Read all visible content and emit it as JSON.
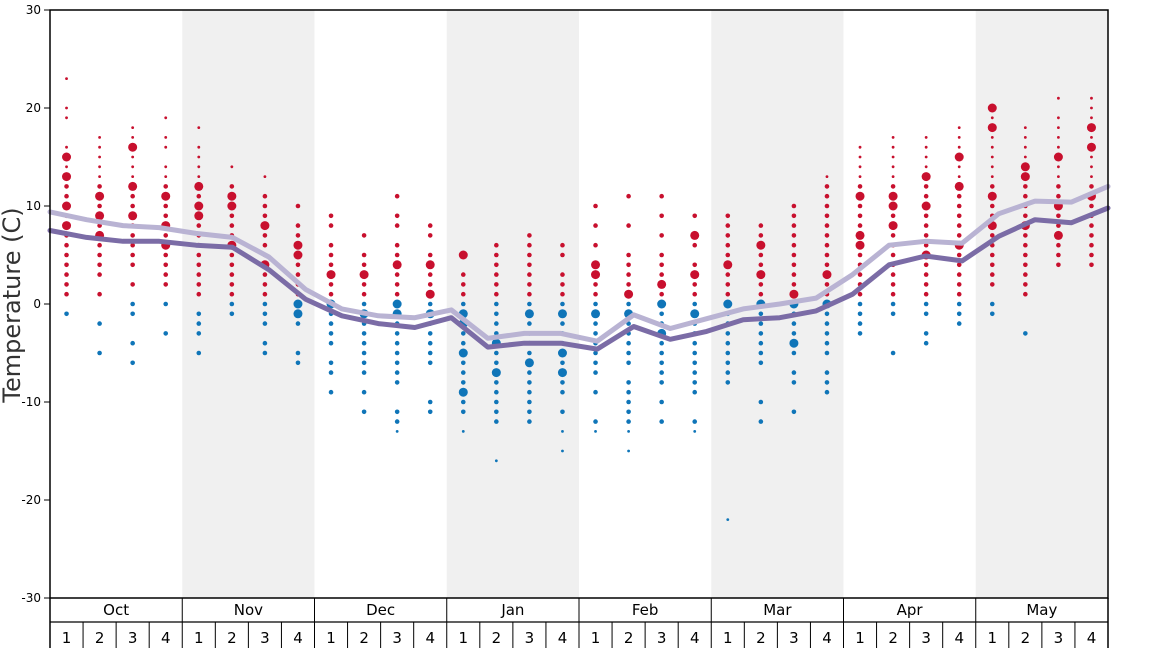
{
  "chart_data": {
    "type": "scatter",
    "ylabel": "Temperature (C)",
    "ylim": [
      -30,
      30
    ],
    "yticks": [
      "30",
      "20",
      "10",
      "0",
      "-10",
      "-20",
      "-30"
    ],
    "months": [
      "Oct",
      "Nov",
      "Dec",
      "Jan",
      "Feb",
      "Mar",
      "Apr",
      "May"
    ],
    "weeks": [
      "1",
      "2",
      "3",
      "4"
    ],
    "colors": {
      "warm": "#c8102e",
      "cold": "#0f75b8",
      "upper_line": "#b9b3d3",
      "lower_line": "#7b6ca6",
      "shade": "#f0f0f0"
    },
    "upper_line": [
      9.4,
      8.6,
      8.0,
      7.8,
      7.2,
      6.8,
      4.8,
      1.5,
      -0.5,
      -1.2,
      -1.4,
      -0.6,
      -3.5,
      -3.0,
      -3.0,
      -3.8,
      -1.1,
      -2.5,
      -1.5,
      -0.5,
      0.0,
      0.6,
      3.0,
      6.0,
      6.4,
      6.2,
      9.2,
      10.5,
      10.4,
      12.0
    ],
    "lower_line": [
      7.5,
      6.8,
      6.4,
      6.4,
      6.0,
      5.8,
      3.5,
      0.5,
      -1.2,
      -2.0,
      -2.4,
      -1.4,
      -4.4,
      -4.0,
      -4.0,
      -4.6,
      -2.3,
      -3.6,
      -2.8,
      -1.6,
      -1.4,
      -0.7,
      1.0,
      4.0,
      4.9,
      4.4,
      6.9,
      8.6,
      8.3,
      9.8
    ],
    "weekly_observations": [
      {
        "month": "Oct",
        "week": 1,
        "temps": [
          23,
          20,
          19,
          16,
          15,
          14,
          13,
          12,
          11,
          10,
          9,
          8,
          7,
          6,
          5,
          4,
          3,
          2,
          1,
          -1
        ],
        "big": [
          13,
          15,
          10,
          8
        ]
      },
      {
        "month": "Oct",
        "week": 2,
        "temps": [
          17,
          16,
          15,
          14,
          13,
          12,
          11,
          10,
          9,
          8,
          7,
          6,
          5,
          4,
          3,
          1,
          -2,
          -5
        ],
        "big": [
          9,
          7,
          11
        ]
      },
      {
        "month": "Oct",
        "week": 3,
        "temps": [
          18,
          17,
          16,
          15,
          14,
          13,
          12,
          11,
          10,
          9,
          8,
          7,
          6,
          5,
          4,
          2,
          0,
          -1,
          -4,
          -6
        ],
        "big": [
          16,
          12,
          9
        ]
      },
      {
        "month": "Oct",
        "week": 4,
        "temps": [
          19,
          17,
          16,
          14,
          13,
          12,
          11,
          10,
          9,
          8,
          7,
          6,
          5,
          4,
          3,
          2,
          0,
          -3
        ],
        "big": [
          11,
          8,
          6
        ]
      },
      {
        "month": "Nov",
        "week": 1,
        "temps": [
          18,
          16,
          15,
          14,
          13,
          12,
          11,
          10,
          9,
          8,
          7,
          6,
          5,
          4,
          3,
          2,
          1,
          -1,
          -2,
          -3,
          -5
        ],
        "big": [
          12,
          10,
          9
        ]
      },
      {
        "month": "Nov",
        "week": 2,
        "temps": [
          14,
          12,
          11,
          10,
          9,
          8,
          7,
          6,
          5,
          4,
          3,
          2,
          1,
          0,
          -1
        ],
        "big": [
          10,
          11,
          6
        ]
      },
      {
        "month": "Nov",
        "week": 3,
        "temps": [
          13,
          11,
          10,
          9,
          8,
          7,
          6,
          5,
          4,
          3,
          2,
          1,
          0,
          -1,
          -2,
          -4,
          -5
        ],
        "big": [
          4,
          8
        ]
      },
      {
        "month": "Nov",
        "week": 4,
        "temps": [
          10,
          8,
          7,
          6,
          5,
          4,
          3,
          2,
          1,
          0,
          -1,
          -2,
          -5,
          -6
        ],
        "big": [
          6,
          5,
          0,
          -1
        ]
      },
      {
        "month": "Dec",
        "week": 1,
        "temps": [
          9,
          8,
          6,
          5,
          4,
          3,
          2,
          1,
          0,
          -1,
          -2,
          -3,
          -4,
          -6,
          -7,
          -9
        ],
        "big": [
          3,
          0
        ]
      },
      {
        "month": "Dec",
        "week": 2,
        "temps": [
          7,
          5,
          4,
          3,
          2,
          1,
          0,
          -1,
          -2,
          -3,
          -4,
          -5,
          -6,
          -7,
          -9,
          -11
        ],
        "big": [
          3,
          -1
        ]
      },
      {
        "month": "Dec",
        "week": 3,
        "temps": [
          11,
          9,
          8,
          6,
          5,
          4,
          3,
          2,
          1,
          0,
          -1,
          -2,
          -3,
          -4,
          -5,
          -6,
          -7,
          -8,
          -11,
          -12,
          -13
        ],
        "big": [
          4,
          0,
          -1
        ]
      },
      {
        "month": "Dec",
        "week": 4,
        "temps": [
          8,
          7,
          5,
          4,
          3,
          2,
          1,
          0,
          -1,
          -2,
          -3,
          -4,
          -5,
          -6,
          -10,
          -11
        ],
        "big": [
          4,
          1,
          -1
        ]
      },
      {
        "month": "Jan",
        "week": 1,
        "temps": [
          5,
          3,
          2,
          1,
          0,
          -1,
          -2,
          -3,
          -4,
          -5,
          -6,
          -7,
          -8,
          -9,
          -10,
          -11,
          -13
        ],
        "big": [
          5,
          -1,
          -2,
          -5,
          -9
        ]
      },
      {
        "month": "Jan",
        "week": 2,
        "temps": [
          6,
          5,
          4,
          3,
          2,
          1,
          0,
          -1,
          -2,
          -3,
          -4,
          -5,
          -6,
          -7,
          -8,
          -9,
          -10,
          -11,
          -12,
          -16
        ],
        "big": [
          -4,
          -7
        ]
      },
      {
        "month": "Jan",
        "week": 3,
        "temps": [
          7,
          6,
          5,
          4,
          3,
          2,
          1,
          0,
          -1,
          -2,
          -3,
          -4,
          -5,
          -6,
          -7,
          -8,
          -9,
          -10,
          -11,
          -12
        ],
        "big": [
          -6,
          -1
        ]
      },
      {
        "month": "Jan",
        "week": 4,
        "temps": [
          6,
          5,
          3,
          2,
          1,
          0,
          -1,
          -2,
          -3,
          -4,
          -5,
          -6,
          -7,
          -8,
          -9,
          -11,
          -13,
          -15
        ],
        "big": [
          -1,
          -7,
          -5
        ]
      },
      {
        "month": "Feb",
        "week": 1,
        "temps": [
          10,
          8,
          6,
          4,
          3,
          2,
          1,
          0,
          -1,
          -2,
          -3,
          -4,
          -5,
          -6,
          -7,
          -9,
          -12,
          -13
        ],
        "big": [
          3,
          4,
          -1
        ]
      },
      {
        "month": "Feb",
        "week": 2,
        "temps": [
          11,
          8,
          5,
          4,
          3,
          2,
          1,
          0,
          -1,
          -2,
          -3,
          -4,
          -5,
          -6,
          -8,
          -9,
          -10,
          -11,
          -12,
          -13,
          -15
        ],
        "big": [
          -1,
          1
        ]
      },
      {
        "month": "Feb",
        "week": 3,
        "temps": [
          11,
          9,
          7,
          5,
          4,
          3,
          2,
          1,
          0,
          -1,
          -2,
          -3,
          -4,
          -5,
          -6,
          -7,
          -8,
          -10,
          -12
        ],
        "big": [
          2,
          0,
          -3
        ]
      },
      {
        "month": "Feb",
        "week": 4,
        "temps": [
          9,
          7,
          6,
          4,
          3,
          2,
          1,
          0,
          -1,
          -2,
          -3,
          -4,
          -5,
          -6,
          -7,
          -8,
          -9,
          -12,
          -13
        ],
        "big": [
          7,
          3,
          -1
        ]
      },
      {
        "month": "Mar",
        "week": 1,
        "temps": [
          9,
          8,
          7,
          6,
          5,
          4,
          3,
          2,
          1,
          0,
          -1,
          -2,
          -3,
          -4,
          -5,
          -6,
          -7,
          -8,
          -22
        ],
        "big": [
          4,
          0
        ]
      },
      {
        "month": "Mar",
        "week": 2,
        "temps": [
          8,
          7,
          6,
          5,
          4,
          3,
          2,
          1,
          0,
          -1,
          -2,
          -3,
          -4,
          -5,
          -6,
          -10,
          -12
        ],
        "big": [
          3,
          6,
          0
        ]
      },
      {
        "month": "Mar",
        "week": 3,
        "temps": [
          10,
          9,
          8,
          7,
          6,
          5,
          4,
          3,
          2,
          1,
          0,
          -1,
          -2,
          -3,
          -4,
          -5,
          -7,
          -8,
          -11
        ],
        "big": [
          1,
          0,
          -4
        ]
      },
      {
        "month": "Mar",
        "week": 4,
        "temps": [
          13,
          12,
          11,
          10,
          9,
          8,
          7,
          6,
          5,
          4,
          3,
          2,
          1,
          0,
          -1,
          -2,
          -3,
          -4,
          -5,
          -7,
          -8,
          -9
        ],
        "big": [
          3,
          0
        ]
      },
      {
        "month": "Apr",
        "week": 1,
        "temps": [
          16,
          15,
          14,
          13,
          12,
          11,
          10,
          9,
          8,
          7,
          6,
          5,
          4,
          3,
          2,
          1,
          0,
          -1,
          -2,
          -3
        ],
        "big": [
          11,
          6,
          7
        ]
      },
      {
        "month": "Apr",
        "week": 2,
        "temps": [
          17,
          16,
          15,
          14,
          13,
          12,
          11,
          10,
          9,
          8,
          7,
          6,
          5,
          4,
          3,
          2,
          1,
          0,
          -1,
          -5
        ],
        "big": [
          11,
          8,
          10
        ]
      },
      {
        "month": "Apr",
        "week": 3,
        "temps": [
          17,
          16,
          15,
          14,
          13,
          12,
          11,
          10,
          9,
          8,
          7,
          6,
          5,
          4,
          3,
          2,
          1,
          0,
          -1,
          -3,
          -4
        ],
        "big": [
          13,
          10,
          5
        ]
      },
      {
        "month": "Apr",
        "week": 4,
        "temps": [
          18,
          17,
          16,
          15,
          14,
          13,
          12,
          11,
          10,
          9,
          8,
          7,
          6,
          5,
          4,
          3,
          2,
          1,
          0,
          -1,
          -2
        ],
        "big": [
          15,
          12,
          6
        ]
      },
      {
        "month": "May",
        "week": 1,
        "temps": [
          20,
          19,
          18,
          17,
          16,
          15,
          14,
          13,
          12,
          11,
          10,
          9,
          8,
          7,
          6,
          5,
          4,
          3,
          2,
          0,
          -1
        ],
        "big": [
          20,
          18,
          11,
          8
        ]
      },
      {
        "month": "May",
        "week": 2,
        "temps": [
          18,
          17,
          16,
          15,
          14,
          13,
          12,
          11,
          10,
          9,
          8,
          7,
          6,
          5,
          4,
          3,
          2,
          1,
          -3
        ],
        "big": [
          13,
          14,
          8
        ]
      },
      {
        "month": "May",
        "week": 3,
        "temps": [
          21,
          19,
          18,
          17,
          16,
          15,
          14,
          13,
          12,
          11,
          10,
          9,
          8,
          7,
          6,
          5,
          4
        ],
        "big": [
          15,
          7,
          10
        ]
      },
      {
        "month": "May",
        "week": 4,
        "temps": [
          21,
          20,
          19,
          18,
          17,
          16,
          15,
          14,
          13,
          12,
          11,
          10,
          9,
          8,
          7,
          6,
          5,
          4
        ],
        "big": [
          18,
          16,
          11
        ]
      }
    ]
  }
}
